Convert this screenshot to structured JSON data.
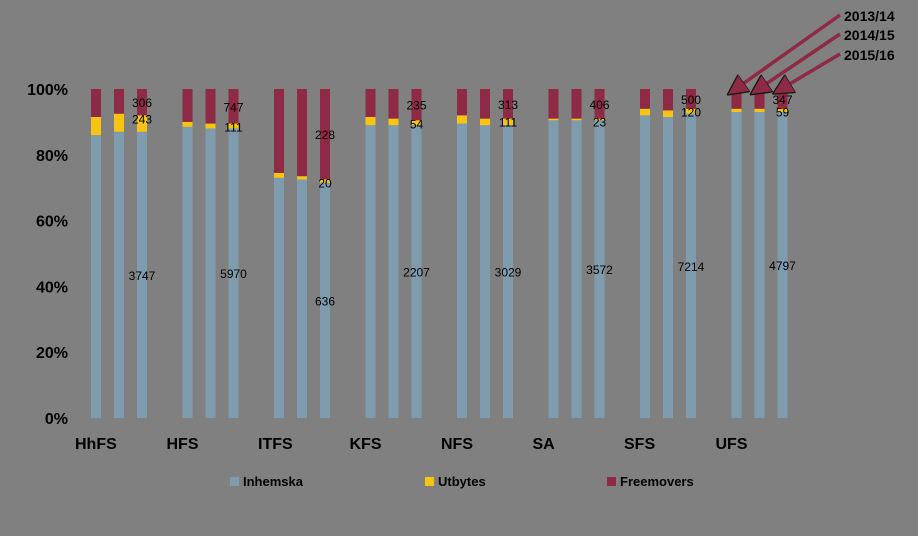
{
  "chart_data": {
    "type": "bar",
    "stacked": true,
    "percent_scale": true,
    "title": "",
    "xlabel": "",
    "ylabel": "",
    "ylim": [
      0,
      100
    ],
    "y_ticks": [
      "0%",
      "20%",
      "40%",
      "60%",
      "80%",
      "100%"
    ],
    "grid": false,
    "legend_position": "bottom",
    "colors": {
      "Inhemska": "#7F9BAE",
      "Utbytes": "#F7C511",
      "Freemovers": "#8E2A45",
      "background": "#808080"
    },
    "categories": [
      "HhFS",
      "HFS",
      "ITFS",
      "KFS",
      "NFS",
      "SA",
      "SFS",
      "UFS"
    ],
    "years": [
      "2013/14",
      "2014/15",
      "2015/16"
    ],
    "series": [
      {
        "name": "Inhemska",
        "values": [
          [
            86,
            87,
            87
          ],
          [
            88.5,
            88,
            88
          ],
          [
            73,
            72.5,
            71.5
          ],
          [
            89,
            89,
            89
          ],
          [
            89.5,
            89,
            89
          ],
          [
            90.5,
            90.5,
            90.5
          ],
          [
            92,
            91.5,
            92.5
          ],
          [
            93,
            93,
            93
          ]
        ]
      },
      {
        "name": "Utbytes",
        "values": [
          [
            5.5,
            5.5,
            5
          ],
          [
            1.5,
            1.5,
            1.5
          ],
          [
            1.5,
            1,
            1
          ],
          [
            2.5,
            2,
            1.5
          ],
          [
            2.5,
            2,
            2
          ],
          [
            0.5,
            0.5,
            0.5
          ],
          [
            2,
            2,
            1.5
          ],
          [
            1,
            1,
            1
          ]
        ]
      },
      {
        "name": "Freemovers",
        "values": [
          [
            8.5,
            7.5,
            8
          ],
          [
            10,
            10.5,
            10.5
          ],
          [
            25.5,
            26.5,
            27.5
          ],
          [
            8.5,
            9,
            9.5
          ],
          [
            8,
            9,
            9
          ],
          [
            9,
            9,
            9
          ],
          [
            6,
            6.5,
            6
          ],
          [
            6,
            6,
            6
          ]
        ]
      }
    ],
    "data_labels_2015_16": [
      {
        "category": "HhFS",
        "Inhemska": "3747",
        "Utbytes": "243",
        "Freemovers": "306"
      },
      {
        "category": "HFS",
        "Inhemska": "5970",
        "Utbytes": "111",
        "Freemovers": "747"
      },
      {
        "category": "ITFS",
        "Inhemska": "636",
        "Utbytes": "20",
        "Freemovers": "228"
      },
      {
        "category": "KFS",
        "Inhemska": "2207",
        "Utbytes": "54",
        "Freemovers": "235"
      },
      {
        "category": "NFS",
        "Inhemska": "3029",
        "Utbytes": "111",
        "Freemovers": "313"
      },
      {
        "category": "SA",
        "Inhemska": "3572",
        "Utbytes": "23",
        "Freemovers": "406"
      },
      {
        "category": "SFS",
        "Inhemska": "7214",
        "Utbytes": "120",
        "Freemovers": "500"
      },
      {
        "category": "UFS",
        "Inhemska": "4797",
        "Utbytes": "59",
        "Freemovers": "347"
      }
    ],
    "annotations": [
      "2013/14",
      "2014/15",
      "2015/16"
    ]
  }
}
